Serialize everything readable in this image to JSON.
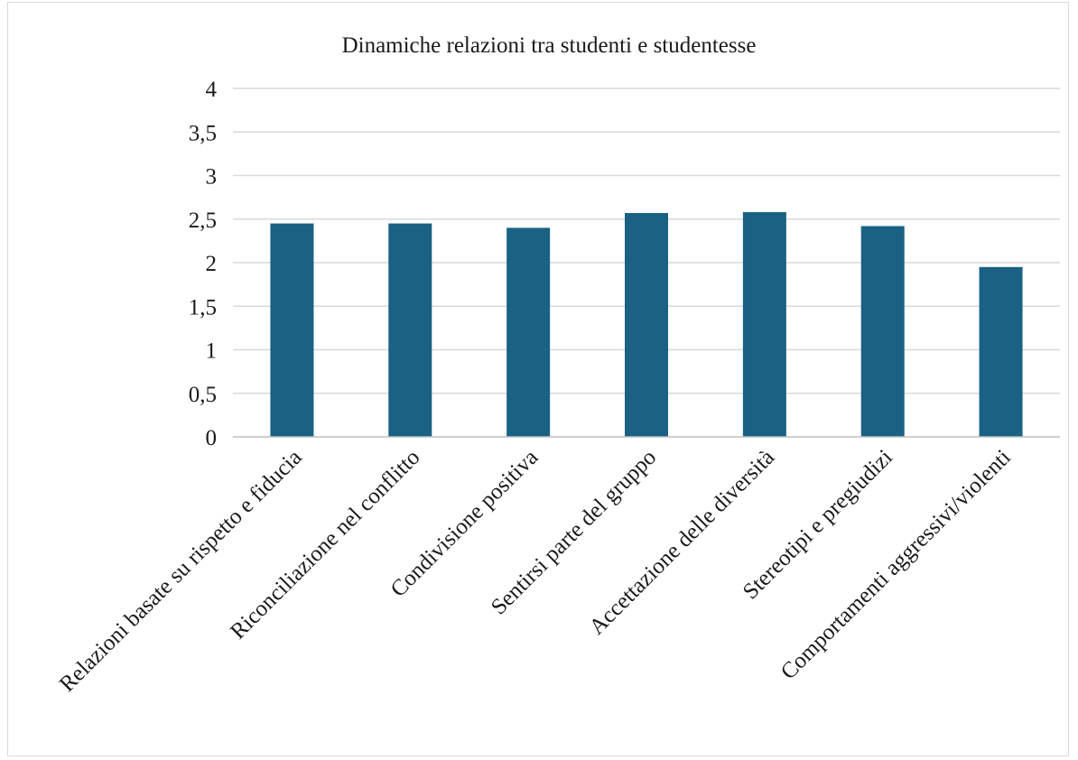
{
  "chart_data": {
    "type": "bar",
    "title": "Dinamiche relazioni tra studenti e studentesse",
    "categories": [
      "Relazioni basate su rispetto e fiducia",
      "Riconciliazione nel conflitto",
      "Condivisione positiva",
      "Sentirsi parte del gruppo",
      "Accettazione delle diversità",
      "Stereotipi e pregiudizi",
      "Comportamenti aggressivi/violenti"
    ],
    "values": [
      2.45,
      2.45,
      2.4,
      2.57,
      2.58,
      2.42,
      1.95
    ],
    "ylim": [
      0,
      4
    ],
    "yticks": [
      "0",
      "0,5",
      "1",
      "1,5",
      "2",
      "2,5",
      "3",
      "3,5",
      "4"
    ],
    "ytick_values": [
      0,
      0.5,
      1,
      1.5,
      2,
      2.5,
      3,
      3.5,
      4
    ],
    "grid": true,
    "legend": "none",
    "bar_color": "#1a6184"
  }
}
